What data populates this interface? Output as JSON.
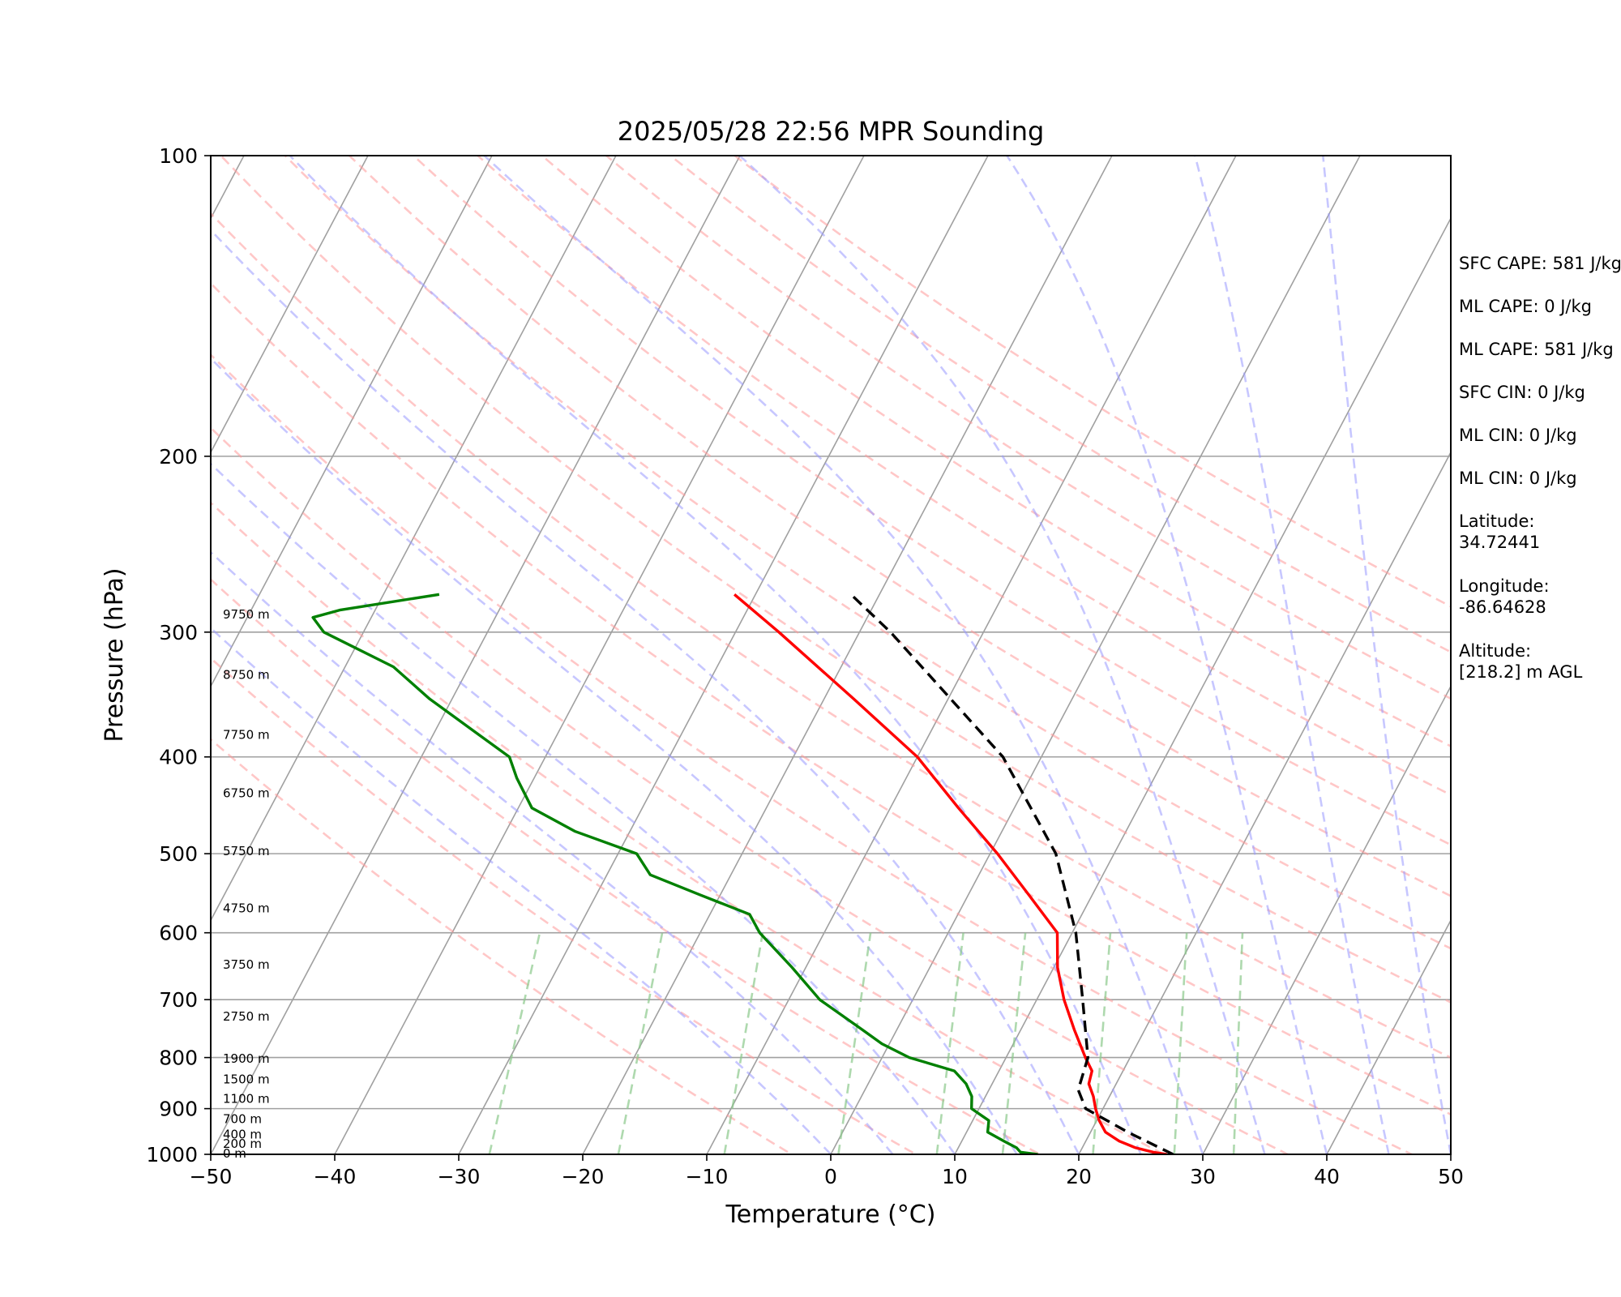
{
  "chart_data": {
    "type": "line",
    "title": "2025/05/28 22:56 MPR Sounding",
    "xlabel": "Temperature (°C)",
    "ylabel": "Pressure (hPa)",
    "xlim": [
      -50,
      50
    ],
    "ylim": [
      1000,
      100
    ],
    "y_scale": "log",
    "skew": "skew-T",
    "x_ticks": [
      "−50",
      "−40",
      "−30",
      "−20",
      "−10",
      "0",
      "10",
      "20",
      "30",
      "40",
      "50"
    ],
    "y_ticks": [
      {
        "p": 100,
        "label": "100"
      },
      {
        "p": 200,
        "label": "200"
      },
      {
        "p": 300,
        "label": "300"
      },
      {
        "p": 400,
        "label": "400"
      },
      {
        "p": 500,
        "label": "500"
      },
      {
        "p": 600,
        "label": "600"
      },
      {
        "p": 700,
        "label": "700"
      },
      {
        "p": 800,
        "label": "800"
      },
      {
        "p": 900,
        "label": "900"
      },
      {
        "p": 1000,
        "label": "1000"
      }
    ],
    "grid": true,
    "height_labels": [
      {
        "p": 998,
        "label": "0 m"
      },
      {
        "p": 976,
        "label": "200 m"
      },
      {
        "p": 955,
        "label": "400 m"
      },
      {
        "p": 922,
        "label": "700 m"
      },
      {
        "p": 880,
        "label": "1100 m"
      },
      {
        "p": 841,
        "label": "1500 m"
      },
      {
        "p": 802,
        "label": "1900 m"
      },
      {
        "p": 728,
        "label": "2750 m"
      },
      {
        "p": 646,
        "label": "3750 m"
      },
      {
        "p": 567,
        "label": "4750 m"
      },
      {
        "p": 497,
        "label": "5750 m"
      },
      {
        "p": 435,
        "label": "6750 m"
      },
      {
        "p": 380,
        "label": "7750 m"
      },
      {
        "p": 331,
        "label": "8750 m"
      },
      {
        "p": 288,
        "label": "9750 m"
      }
    ],
    "series": [
      {
        "role": "temperature",
        "color": "#ff0000",
        "points": [
          {
            "p": 1000,
            "t": 27.1
          },
          {
            "p": 995,
            "t": 25.9
          },
          {
            "p": 985,
            "t": 24.3
          },
          {
            "p": 970,
            "t": 22.7
          },
          {
            "p": 950,
            "t": 21.2
          },
          {
            "p": 925,
            "t": 20.2
          },
          {
            "p": 900,
            "t": 19.4
          },
          {
            "p": 875,
            "t": 18.7
          },
          {
            "p": 850,
            "t": 17.8
          },
          {
            "p": 825,
            "t": 17.5
          },
          {
            "p": 800,
            "t": 16.4
          },
          {
            "p": 750,
            "t": 14.3
          },
          {
            "p": 700,
            "t": 12.2
          },
          {
            "p": 650,
            "t": 10.3
          },
          {
            "p": 600,
            "t": 8.8
          },
          {
            "p": 550,
            "t": 4.9
          },
          {
            "p": 500,
            "t": 0.6
          },
          {
            "p": 450,
            "t": -4.5
          },
          {
            "p": 400,
            "t": -10.0
          },
          {
            "p": 350,
            "t": -17.6
          },
          {
            "p": 300,
            "t": -26.5
          },
          {
            "p": 275,
            "t": -31.7
          }
        ]
      },
      {
        "role": "dewpoint",
        "color": "#008000",
        "points": [
          {
            "p": 1000,
            "t": 16.7
          },
          {
            "p": 995,
            "t": 15.2
          },
          {
            "p": 985,
            "t": 14.7
          },
          {
            "p": 970,
            "t": 13.4
          },
          {
            "p": 950,
            "t": 11.7
          },
          {
            "p": 925,
            "t": 11.3
          },
          {
            "p": 900,
            "t": 9.4
          },
          {
            "p": 875,
            "t": 8.9
          },
          {
            "p": 850,
            "t": 7.9
          },
          {
            "p": 825,
            "t": 6.4
          },
          {
            "p": 800,
            "t": 2.2
          },
          {
            "p": 775,
            "t": -0.6
          },
          {
            "p": 750,
            "t": -2.8
          },
          {
            "p": 700,
            "t": -7.5
          },
          {
            "p": 650,
            "t": -11.1
          },
          {
            "p": 600,
            "t": -15.2
          },
          {
            "p": 575,
            "t": -16.8
          },
          {
            "p": 550,
            "t": -21.6
          },
          {
            "p": 525,
            "t": -26.5
          },
          {
            "p": 500,
            "t": -28.5
          },
          {
            "p": 475,
            "t": -34.4
          },
          {
            "p": 450,
            "t": -38.9
          },
          {
            "p": 420,
            "t": -41.4
          },
          {
            "p": 400,
            "t": -42.9
          },
          {
            "p": 375,
            "t": -47.2
          },
          {
            "p": 350,
            "t": -51.8
          },
          {
            "p": 325,
            "t": -56.1
          },
          {
            "p": 300,
            "t": -63.2
          },
          {
            "p": 290,
            "t": -64.7
          },
          {
            "p": 285,
            "t": -62.8
          },
          {
            "p": 275,
            "t": -55.5
          }
        ]
      },
      {
        "role": "parcel",
        "color": "#000000",
        "dashed": true,
        "points": [
          {
            "p": 1000,
            "t": 27.6
          },
          {
            "p": 950,
            "t": 23.0
          },
          {
            "p": 900,
            "t": 18.6
          },
          {
            "p": 862,
            "t": 17.2
          },
          {
            "p": 800,
            "t": 16.6
          },
          {
            "p": 700,
            "t": 13.7
          },
          {
            "p": 600,
            "t": 10.3
          },
          {
            "p": 500,
            "t": 5.3
          },
          {
            "p": 400,
            "t": -3.1
          },
          {
            "p": 300,
            "t": -17.5
          },
          {
            "p": 275,
            "t": -22.3
          }
        ]
      }
    ],
    "background_lines": {
      "isotherms_c": [
        -140,
        -130,
        -120,
        -110,
        -100,
        -90,
        -80,
        -70,
        -60,
        -50,
        -40,
        -30,
        -20,
        -10,
        0,
        10,
        20,
        30,
        40,
        50
      ],
      "dry_adiabats_theta_k": [
        270,
        280,
        290,
        300,
        310,
        320,
        330,
        340,
        350,
        360,
        370,
        380,
        390,
        400,
        410,
        420,
        430
      ],
      "moist_adiabats_start_c": [
        0,
        5,
        10,
        15,
        20,
        25,
        30,
        35,
        40,
        45,
        50
      ],
      "mixing_ratios_g_kg": [
        0.4,
        1,
        2,
        4,
        7,
        10,
        16,
        24,
        32
      ],
      "colors": {
        "isotherm": "#a0a0a0",
        "dry_adiabat": "#ff9999",
        "moist_adiabat": "#9999ff",
        "mixing_ratio": "#8cc98c"
      }
    }
  },
  "info_panel": {
    "sfc_cape": "SFC CAPE: 581 J/kg",
    "ml_cape_1": "ML CAPE: 0 J/kg",
    "ml_cape_2": "ML CAPE: 581 J/kg",
    "sfc_cin": "SFC CIN: 0 J/kg",
    "ml_cin_1": "ML CIN: 0 J/kg",
    "ml_cin_2": "ML CIN: 0 J/kg",
    "latitude": "Latitude:\n34.72441",
    "longitude": "Longitude:\n-86.64628",
    "altitude": "Altitude:\n[218.2] m AGL"
  }
}
